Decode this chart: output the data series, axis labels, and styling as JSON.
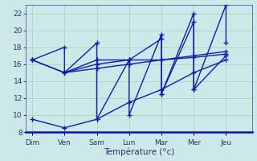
{
  "xlabel": "Température (°c)",
  "background_color": "#cce8e8",
  "grid_color": "#aaccaa",
  "line_color": "#1a1aaa",
  "ylim": [
    8,
    23
  ],
  "yticks": [
    8,
    10,
    12,
    14,
    16,
    18,
    20,
    22
  ],
  "days": [
    "Dim",
    "Ven",
    "Sam",
    "Lun",
    "Mar",
    "Mer",
    "Jeu"
  ],
  "day_positions": [
    0,
    1,
    2,
    3,
    4,
    5,
    6
  ],
  "xlim": [
    -0.2,
    6.8
  ],
  "zigzag": {
    "x": [
      0,
      1,
      1,
      2,
      2,
      3,
      3,
      4,
      4,
      5,
      5,
      6,
      6
    ],
    "y": [
      16.5,
      18.0,
      15.0,
      18.5,
      9.5,
      16.5,
      10.0,
      19.5,
      12.5,
      22.0,
      13.0,
      23.0,
      18.5
    ]
  },
  "zigzag2": {
    "x": [
      1,
      2,
      3,
      4,
      4,
      5,
      5,
      6
    ],
    "y": [
      15.0,
      16.5,
      16.5,
      19.0,
      12.5,
      21.0,
      13.0,
      17.0
    ]
  },
  "low_trend": {
    "x": [
      0,
      1,
      2,
      3,
      4,
      5,
      6
    ],
    "y": [
      9.5,
      8.5,
      9.5,
      11.5,
      13.0,
      15.0,
      16.5
    ]
  },
  "mean1": {
    "x": [
      0,
      1,
      2,
      3,
      4,
      5,
      6
    ],
    "y": [
      16.5,
      15.0,
      16.0,
      16.5,
      16.5,
      17.0,
      17.5
    ]
  },
  "mean2": {
    "x": [
      0,
      1,
      2,
      3,
      4,
      5,
      6
    ],
    "y": [
      16.5,
      15.0,
      15.5,
      16.0,
      16.5,
      16.8,
      17.2
    ]
  },
  "marker": "+",
  "marker_size": 4,
  "linewidth": 1.0,
  "tick_labelsize": 6.5,
  "xlabel_fontsize": 7.5
}
